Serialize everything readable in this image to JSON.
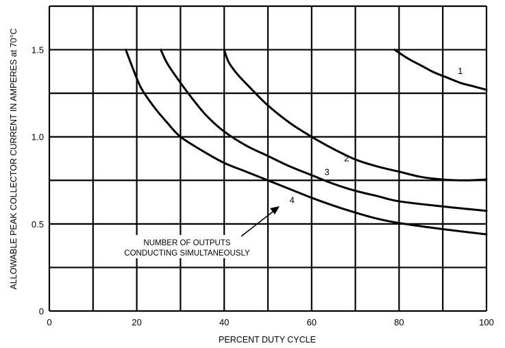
{
  "chart_data": {
    "type": "line",
    "title": "",
    "xlabel": "PERCENT DUTY CYCLE",
    "ylabel": "ALLOWABLE PEAK COLLECTOR CURRENT IN AMPERES at 70°C",
    "xlim": [
      0,
      100
    ],
    "ylim": [
      0,
      1.75
    ],
    "x_ticks": [
      0,
      20,
      40,
      60,
      80,
      100
    ],
    "x_tick_labels": [
      "0",
      "20",
      "40",
      "60",
      "80",
      "100"
    ],
    "y_ticks": [
      0,
      0.5,
      1.0,
      1.5
    ],
    "y_tick_labels": [
      "0",
      "0.5",
      "1.0",
      "1.5"
    ],
    "x_grid": [
      0,
      10,
      20,
      30,
      40,
      50,
      60,
      70,
      80,
      90,
      100
    ],
    "y_grid": [
      0,
      0.25,
      0.5,
      0.75,
      1.0,
      1.25,
      1.5,
      1.75
    ],
    "grid": true,
    "series": [
      {
        "name": "1",
        "x": [
          79,
          82,
          85,
          88,
          91,
          94,
          97,
          100
        ],
        "y": [
          1.5,
          1.45,
          1.41,
          1.37,
          1.34,
          1.31,
          1.29,
          1.27
        ]
      },
      {
        "name": "2",
        "x": [
          40,
          41,
          43,
          46,
          50,
          55,
          60,
          65,
          70,
          75,
          80,
          85,
          90,
          95,
          100
        ],
        "y": [
          1.5,
          1.43,
          1.36,
          1.28,
          1.18,
          1.08,
          1.0,
          0.93,
          0.87,
          0.83,
          0.8,
          0.77,
          0.755,
          0.75,
          0.755
        ]
      },
      {
        "name": "3",
        "x": [
          25.5,
          27,
          30,
          33,
          36,
          40,
          45,
          50,
          55,
          60,
          65,
          70,
          75,
          80,
          90,
          100
        ],
        "y": [
          1.5,
          1.42,
          1.31,
          1.21,
          1.12,
          1.03,
          0.95,
          0.89,
          0.83,
          0.78,
          0.73,
          0.69,
          0.66,
          0.63,
          0.6,
          0.575
        ]
      },
      {
        "name": "4",
        "x": [
          17.5,
          19,
          21,
          24,
          27,
          30,
          35,
          40,
          45,
          50,
          55,
          60,
          65,
          70,
          75,
          80,
          90,
          100
        ],
        "y": [
          1.5,
          1.4,
          1.28,
          1.17,
          1.08,
          1.0,
          0.92,
          0.85,
          0.8,
          0.75,
          0.7,
          0.65,
          0.605,
          0.565,
          0.53,
          0.505,
          0.47,
          0.44
        ]
      }
    ],
    "annotations": {
      "note_line1": "NUMBER OF OUTPUTS",
      "note_line2": "CONDUCTING SIMULTANEOUSLY"
    }
  }
}
